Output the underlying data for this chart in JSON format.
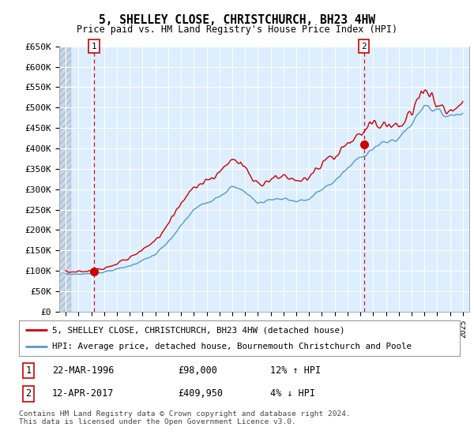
{
  "title": "5, SHELLEY CLOSE, CHRISTCHURCH, BH23 4HW",
  "subtitle": "Price paid vs. HM Land Registry's House Price Index (HPI)",
  "ylim": [
    0,
    650000
  ],
  "yticks": [
    0,
    50000,
    100000,
    150000,
    200000,
    250000,
    300000,
    350000,
    400000,
    450000,
    500000,
    550000,
    600000,
    650000
  ],
  "ytick_labels": [
    "£0",
    "£50K",
    "£100K",
    "£150K",
    "£200K",
    "£250K",
    "£300K",
    "£350K",
    "£400K",
    "£450K",
    "£500K",
    "£550K",
    "£600K",
    "£650K"
  ],
  "xlim_start": 1994.0,
  "xlim_end": 2025.5,
  "sale1_x": 1996.22,
  "sale1_y": 98000,
  "sale2_x": 2017.28,
  "sale2_y": 409950,
  "line_color_red": "#cc0000",
  "line_color_blue": "#5599cc",
  "bg_color": "#ddeeff",
  "grid_color": "#ffffff",
  "legend_line1": "5, SHELLEY CLOSE, CHRISTCHURCH, BH23 4HW (detached house)",
  "legend_line2": "HPI: Average price, detached house, Bournemouth Christchurch and Poole",
  "sale1_date": "22-MAR-1996",
  "sale1_price": "£98,000",
  "sale1_hpi": "12% ↑ HPI",
  "sale2_date": "12-APR-2017",
  "sale2_price": "£409,950",
  "sale2_hpi": "4% ↓ HPI",
  "footer": "Contains HM Land Registry data © Crown copyright and database right 2024.\nThis data is licensed under the Open Government Licence v3.0."
}
